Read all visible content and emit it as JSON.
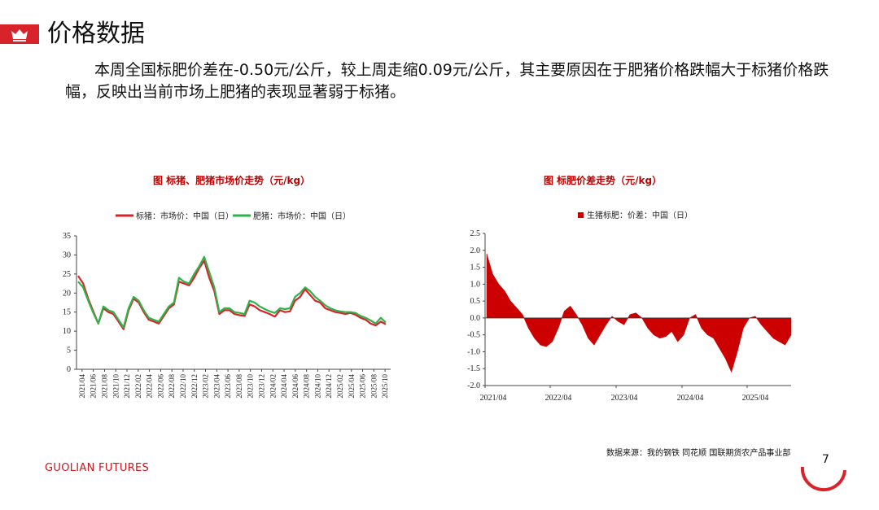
{
  "header": {
    "title": "价格数据",
    "crown_icon": "crown-icon",
    "accent_color": "#d9232a"
  },
  "summary": "本周全国标肥价差在-0.50元/公斤，较上周走缩0.09元/公斤，其主要原因在于肥猪价格跌幅大于标猪价格跌幅，反映出当前市场上肥猪的表现显著弱于标猪。",
  "footer": {
    "source": "数据来源：我的钢铁  同花顺  国联期货农产品事业部",
    "brand": "GUOLIAN FUTURES",
    "page_number": "7"
  },
  "chart_data": [
    {
      "type": "line",
      "title": "图   标猪、肥猪市场价走势（元/kg）",
      "legend_position": "top",
      "ylim": [
        0,
        35
      ],
      "y_ticks": [
        "0",
        "5",
        "10",
        "15",
        "20",
        "25",
        "30",
        "35"
      ],
      "x_ticks": [
        "2021/04",
        "2021/06",
        "2021/08",
        "2021/10",
        "2021/12",
        "2022/02",
        "2022/04",
        "2022/06",
        "2022/08",
        "2022/10",
        "2022/12",
        "2023/02",
        "2023/04",
        "2023/06",
        "2023/08",
        "2023/10",
        "2023/12",
        "2024/02",
        "2024/04",
        "2024/06",
        "2024/08",
        "2024/10",
        "2024/12",
        "2025/02",
        "2025/04",
        "2025/06",
        "2025/08",
        "2025/10"
      ],
      "grid": false,
      "series": [
        {
          "name": "标猪：市场价：中国（日）",
          "color": "#d9232a",
          "values": [
            24.5,
            22.5,
            18.5,
            15.2,
            12.0,
            16.0,
            15.0,
            14.5,
            12.5,
            10.5,
            15.5,
            18.5,
            17.5,
            15.0,
            13.0,
            12.5,
            12.0,
            14.0,
            16.0,
            17.0,
            23.0,
            22.5,
            22.0,
            24.0,
            26.5,
            28.5,
            24.0,
            20.5,
            14.5,
            15.5,
            15.5,
            14.5,
            14.2,
            14.0,
            17.0,
            16.5,
            15.5,
            15.0,
            14.5,
            13.8,
            15.5,
            15.0,
            15.2,
            18.0,
            19.0,
            21.0,
            19.5,
            18.0,
            17.5,
            16.0,
            15.5,
            15.0,
            14.8,
            14.5,
            14.8,
            14.3,
            13.5,
            13.0,
            12.0,
            11.5,
            12.5,
            11.8
          ]
        },
        {
          "name": "肥猪：市场价：中国（日）",
          "color": "#2eb34a",
          "values": [
            23.0,
            21.5,
            18.0,
            14.8,
            12.0,
            16.5,
            15.5,
            15.0,
            13.0,
            11.0,
            16.0,
            19.0,
            18.0,
            15.5,
            13.5,
            13.0,
            12.5,
            14.5,
            16.5,
            17.5,
            24.0,
            23.0,
            22.5,
            25.0,
            27.0,
            29.5,
            25.5,
            21.5,
            15.0,
            16.0,
            16.0,
            15.0,
            14.8,
            14.5,
            18.0,
            17.5,
            16.5,
            15.8,
            15.2,
            14.8,
            16.0,
            15.8,
            16.0,
            19.0,
            20.0,
            21.5,
            20.5,
            19.0,
            18.0,
            16.8,
            16.0,
            15.5,
            15.2,
            15.0,
            15.0,
            14.8,
            14.0,
            13.5,
            12.8,
            12.0,
            13.5,
            12.3
          ]
        }
      ]
    },
    {
      "type": "area",
      "title": "图   标肥价差走势（元/kg）",
      "legend_position": "top",
      "ylim": [
        -2.0,
        2.5
      ],
      "y_ticks": [
        "-2.0",
        "-1.5",
        "-1.0",
        "-0.5",
        "0.0",
        "0.5",
        "1.0",
        "1.5",
        "2.0",
        "2.5"
      ],
      "x_ticks": [
        "2021/04",
        "2022/04",
        "2023/04",
        "2024/04",
        "2025/04"
      ],
      "grid": false,
      "series": [
        {
          "name": "生猪标肥：价差：中国（日）",
          "color": "#cc0000",
          "values": [
            1.9,
            1.3,
            1.0,
            0.8,
            0.5,
            0.3,
            0.1,
            -0.3,
            -0.6,
            -0.8,
            -0.85,
            -0.7,
            -0.3,
            0.2,
            0.35,
            0.1,
            -0.2,
            -0.6,
            -0.8,
            -0.5,
            -0.2,
            0.05,
            -0.1,
            -0.2,
            0.1,
            0.15,
            0.0,
            -0.3,
            -0.5,
            -0.6,
            -0.55,
            -0.4,
            -0.7,
            -0.5,
            0.0,
            0.1,
            -0.3,
            -0.5,
            -0.6,
            -0.9,
            -1.2,
            -1.6,
            -1.0,
            -0.3,
            0.0,
            0.05,
            -0.2,
            -0.4,
            -0.6,
            -0.7,
            -0.8,
            -0.5
          ]
        }
      ]
    }
  ]
}
